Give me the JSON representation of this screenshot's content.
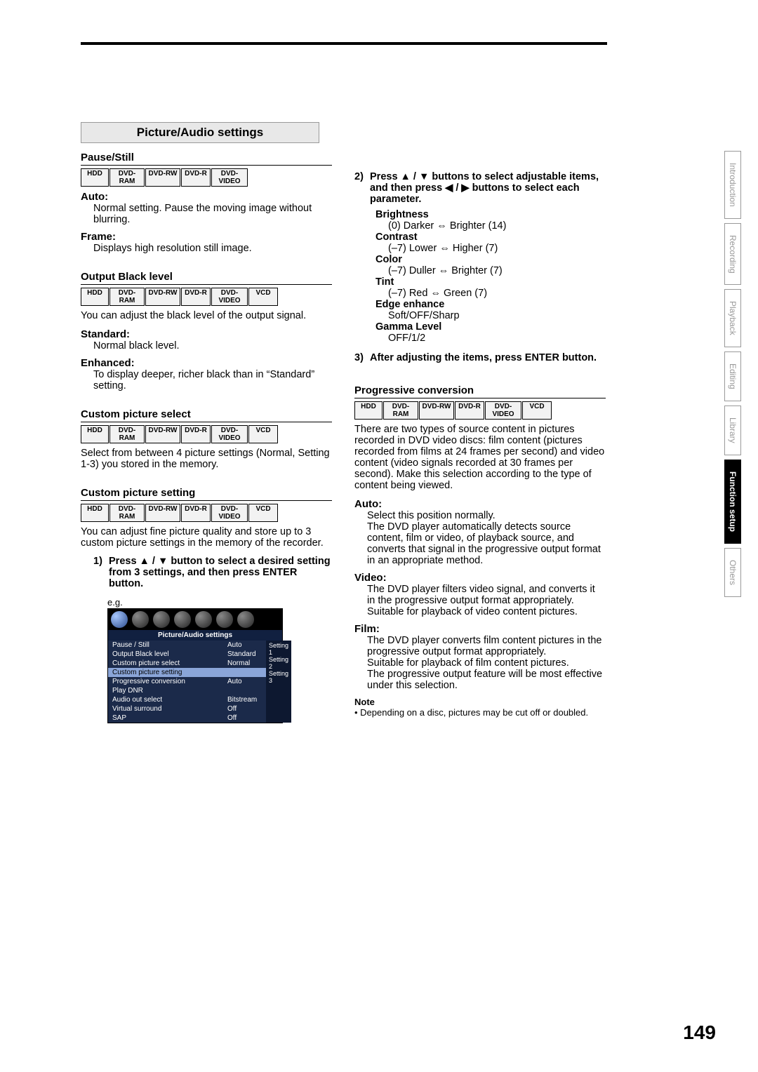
{
  "page_number": "149",
  "side_tabs": [
    "Introduction",
    "Recording",
    "Playback",
    "Editing",
    "Library",
    "Function setup",
    "Others"
  ],
  "side_tab_active_index": 5,
  "section_title": "Picture/Audio settings",
  "media": {
    "hdd": "HDD",
    "ram": "DVD-RAM",
    "rw": "DVD-RW",
    "r": "DVD-R",
    "video": "DVD-VIDEO",
    "vcd": "VCD"
  },
  "pause_still": {
    "title": "Pause/Still",
    "auto_label": "Auto:",
    "auto_text": "Normal setting. Pause the moving image without blurring.",
    "frame_label": "Frame:",
    "frame_text": "Displays high resolution still image."
  },
  "black_level": {
    "title": "Output Black level",
    "intro": "You can adjust the black level of the output signal.",
    "std_label": "Standard:",
    "std_text": "Normal black level.",
    "enh_label": "Enhanced:",
    "enh_text": "To display deeper, richer black than in “Standard” setting."
  },
  "cps": {
    "title": "Custom picture select",
    "text": "Select from between 4 picture settings (Normal, Setting 1-3) you stored in the memory."
  },
  "cpset": {
    "title": "Custom picture setting",
    "intro": "You can adjust fine picture quality and store up to 3 custom picture settings in the memory of the recorder.",
    "step1_num": "1)",
    "step1": "Press ▲ / ▼ button to select a desired setting from 3 settings, and then press ENTER button.",
    "eg": "e.g.",
    "step2_num": "2)",
    "step2": "Press ▲ / ▼ buttons to select adjustable items, and then press ◀ / ▶ buttons to select each parameter.",
    "params": {
      "brightness": {
        "label": "Brightness",
        "val": "(0) Darker ⇔ Brighter (14)"
      },
      "contrast": {
        "label": "Contrast",
        "val": "(–7) Lower ⇔ Higher (7)"
      },
      "color": {
        "label": "Color",
        "val": "(–7) Duller ⇔ Brighter (7)"
      },
      "tint": {
        "label": "Tint",
        "val": "(–7) Red ⇔ Green (7)"
      },
      "edge": {
        "label": "Edge enhance",
        "val": "Soft/OFF/Sharp"
      },
      "gamma": {
        "label": "Gamma Level",
        "val": "OFF/1/2"
      }
    },
    "step3_num": "3)",
    "step3": "After adjusting the items, press ENTER button."
  },
  "prog": {
    "title": "Progressive conversion",
    "intro": "There are two types of source content in pictures recorded in DVD video discs: film content (pictures recorded from films at 24 frames per second) and video content (video signals recorded at 30 frames per second).  Make this selection according to the type of content being viewed.",
    "auto_label": "Auto:",
    "auto_text": "Select this position normally.\nThe DVD player automatically detects source content, film or video, of playback source, and converts that signal in the progressive output format in an appropriate method.",
    "video_label": "Video:",
    "video_text": "The DVD player filters video signal, and converts it in the progressive output format appropriately.\nSuitable for playback of video content pictures.",
    "film_label": "Film:",
    "film_text": "The DVD player converts film content pictures in the progressive output format appropriately.\nSuitable for playback of film content pictures.\nThe progressive output feature will be most effective under this selection.",
    "note_label": "Note",
    "note_text": "• Depending on a disc, pictures may be cut off or doubled."
  },
  "eg_box": {
    "title": "Picture/Audio settings",
    "rows": [
      {
        "l": "Pause / Still",
        "m": "Auto"
      },
      {
        "l": "Output Black level",
        "m": "Standard"
      },
      {
        "l": "Custom picture select",
        "m": "Normal"
      },
      {
        "l": "Custom picture setting",
        "m": "",
        "hl": true
      },
      {
        "l": "Progressive conversion",
        "m": "Auto"
      },
      {
        "l": "Play DNR",
        "m": ""
      },
      {
        "l": "Audio out select",
        "m": "Bitstream"
      },
      {
        "l": "Virtual surround",
        "m": "Off"
      },
      {
        "l": "SAP",
        "m": "Off"
      }
    ],
    "right": [
      "Setting 1",
      "Setting 2",
      "Setting 3"
    ]
  }
}
